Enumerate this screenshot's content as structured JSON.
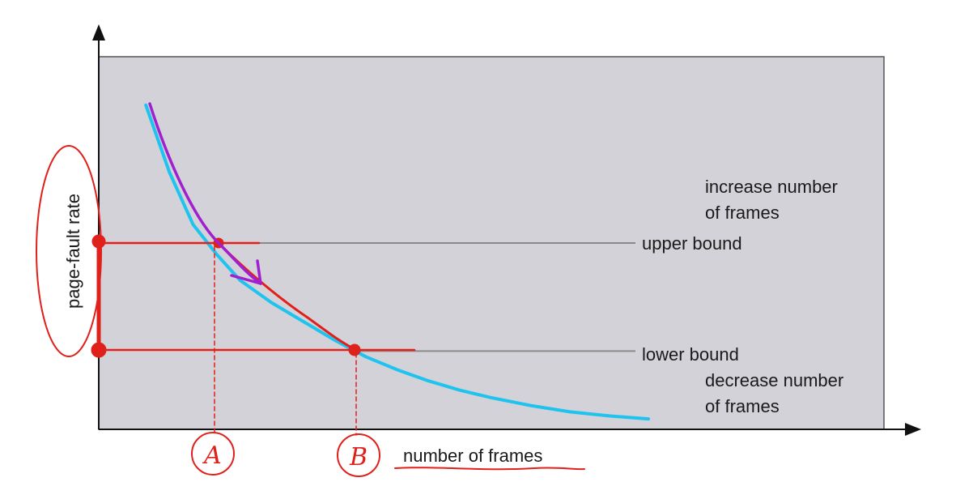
{
  "chart_data": {
    "type": "line",
    "title": "",
    "xlabel": "number of frames",
    "ylabel": "page-fault rate",
    "xlim": [
      0,
      100
    ],
    "ylim": [
      0,
      100
    ],
    "grid": false,
    "series": [
      {
        "x": [
          6,
          9,
          12,
          15,
          18,
          22,
          26,
          30,
          34,
          38,
          42,
          46,
          50,
          55,
          60,
          65,
          70
        ],
        "y": [
          87,
          69,
          55,
          47,
          40,
          34,
          29,
          24,
          19.5,
          16,
          13,
          10.5,
          8.5,
          6.4,
          4.7,
          3.6,
          2.8
        ]
      }
    ],
    "reference_lines": {
      "upper": {
        "y": 50,
        "label": "upper bound"
      },
      "lower": {
        "y": 21,
        "label": "lower bound"
      }
    },
    "region_annotations": {
      "above": [
        "increase number",
        "of frames"
      ],
      "below": [
        "decrease number",
        "of frames"
      ]
    },
    "handwritten_marks": {
      "point_a": {
        "label": "A",
        "x": 15
      },
      "point_b": {
        "label": "B",
        "x": 33
      },
      "colors": {
        "red_ink": "#e0201a",
        "purple_ink": "#a020d0"
      }
    },
    "colors": {
      "plot_background": "#d3d2d8",
      "curve": "#1ec3ee",
      "bound_line": "#8a8a8a",
      "axis": "#111111"
    }
  }
}
